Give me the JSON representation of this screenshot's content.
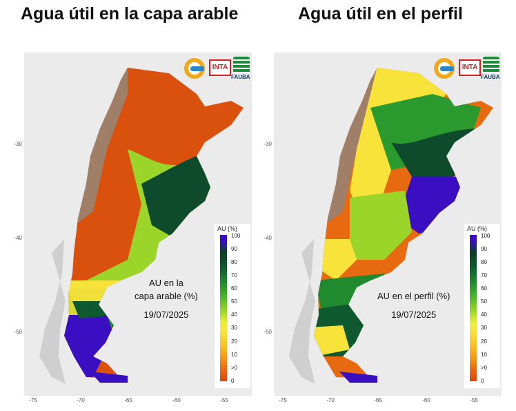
{
  "headings": [
    "Agua útil en la capa arable",
    "Agua útil en el perfil"
  ],
  "logos": {
    "inta": "INTA",
    "fauba": "FAUBA"
  },
  "maps": [
    {
      "annotation_line1": "AU en la",
      "annotation_line2": "capa arable (%)",
      "date": "19/07/2025"
    },
    {
      "annotation_line1": "AU en el perfil (%)",
      "annotation_line2": "",
      "date": "19/07/2025"
    }
  ],
  "legend": {
    "title": "AU (%)",
    "ticks": [
      "100",
      "90",
      "80",
      "70",
      "60",
      "50",
      "40",
      "30",
      "20",
      "10",
      ">0",
      "0"
    ]
  },
  "axes": {
    "y_ticks": [
      "-30",
      "-40",
      "-50"
    ],
    "x_ticks": [
      "-75",
      "-70",
      "-65",
      "-60",
      "-55"
    ]
  },
  "colors": {
    "dry": "#d9470c",
    "mid": "#f8e33a",
    "wet": "#0e5a2e",
    "saturated": "#3a0fc1",
    "no_data": "#a08068"
  }
}
